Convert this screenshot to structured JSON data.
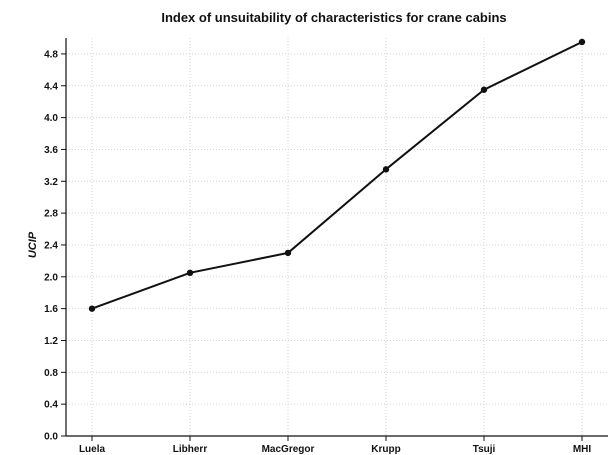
{
  "chart_data": {
    "type": "line",
    "title": "Index of unsuitability of characteristics for crane cabins",
    "xlabel": "",
    "ylabel": "UCIP",
    "categories": [
      "Luela",
      "Libherr",
      "MacGregor",
      "Krupp",
      "Tsuji",
      "MHI"
    ],
    "values": [
      1.6,
      2.05,
      2.3,
      3.35,
      4.35,
      4.95
    ],
    "ylim": [
      0,
      5.0
    ],
    "yticks": [
      "0.0",
      "0.4",
      "0.8",
      "1.2",
      "1.6",
      "2.0",
      "2.4",
      "2.8",
      "3.2",
      "3.6",
      "4.0",
      "4.4",
      "4.8"
    ],
    "ytick_values": [
      0,
      0.4,
      0.8,
      1.2,
      1.6,
      2.0,
      2.4,
      2.8,
      3.2,
      3.6,
      4.0,
      4.4,
      4.8
    ],
    "grid": true,
    "line_color": "#111111"
  }
}
